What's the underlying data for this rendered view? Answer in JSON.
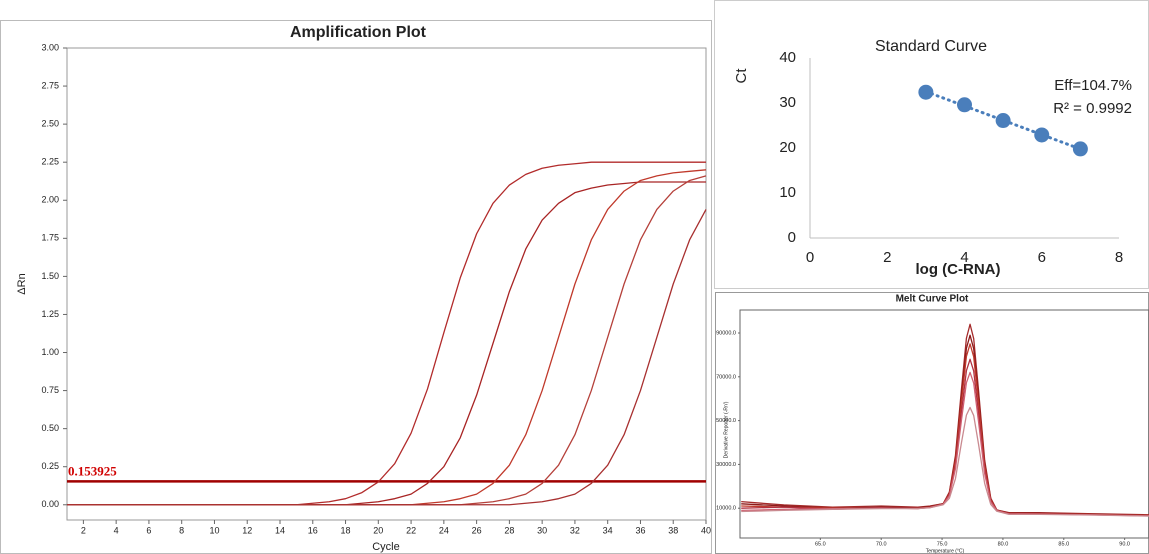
{
  "chart_data": [
    {
      "type": "line",
      "title": "Amplification Plot",
      "x_label": "Cycle",
      "y_label": "ΔRn",
      "x": [
        1,
        2,
        3,
        4,
        5,
        6,
        7,
        8,
        9,
        10,
        11,
        12,
        13,
        14,
        15,
        16,
        17,
        18,
        19,
        20,
        21,
        22,
        23,
        24,
        25,
        26,
        27,
        28,
        29,
        30,
        31,
        32,
        33,
        34,
        35,
        36,
        37,
        38,
        39,
        40
      ],
      "series": [
        {
          "color": "#b22b2b",
          "values": [
            0,
            0,
            0,
            0,
            0,
            0,
            0,
            0,
            0,
            0,
            0,
            0,
            0,
            0,
            0,
            0.01,
            0.02,
            0.04,
            0.08,
            0.15,
            0.27,
            0.47,
            0.76,
            1.13,
            1.49,
            1.78,
            1.98,
            2.1,
            2.17,
            2.21,
            2.23,
            2.24,
            2.25,
            2.25,
            2.25,
            2.25,
            2.25,
            2.25,
            2.25,
            2.25
          ]
        },
        {
          "color": "#a82424",
          "values": [
            0,
            0,
            0,
            0,
            0,
            0,
            0,
            0,
            0,
            0,
            0,
            0,
            0,
            0,
            0,
            0,
            0,
            0,
            0.01,
            0.02,
            0.04,
            0.07,
            0.14,
            0.25,
            0.44,
            0.72,
            1.06,
            1.4,
            1.68,
            1.87,
            1.98,
            2.05,
            2.08,
            2.1,
            2.11,
            2.12,
            2.12,
            2.12,
            2.12,
            2.12
          ]
        },
        {
          "color": "#c0392b",
          "values": [
            0,
            0,
            0,
            0,
            0,
            0,
            0,
            0,
            0,
            0,
            0,
            0,
            0,
            0,
            0,
            0,
            0,
            0,
            0,
            0,
            0,
            0,
            0.01,
            0.02,
            0.04,
            0.07,
            0.14,
            0.26,
            0.46,
            0.75,
            1.1,
            1.45,
            1.74,
            1.94,
            2.06,
            2.13,
            2.16,
            2.18,
            2.19,
            2.2
          ]
        },
        {
          "color": "#b5403a",
          "values": [
            0,
            0,
            0,
            0,
            0,
            0,
            0,
            0,
            0,
            0,
            0,
            0,
            0,
            0,
            0,
            0,
            0,
            0,
            0,
            0,
            0,
            0,
            0,
            0,
            0,
            0.01,
            0.02,
            0.04,
            0.07,
            0.14,
            0.26,
            0.46,
            0.75,
            1.1,
            1.45,
            1.74,
            1.94,
            2.06,
            2.13,
            2.16
          ]
        },
        {
          "color": "#a83030",
          "values": [
            0,
            0,
            0,
            0,
            0,
            0,
            0,
            0,
            0,
            0,
            0,
            0,
            0,
            0,
            0,
            0,
            0,
            0,
            0,
            0,
            0,
            0,
            0,
            0,
            0,
            0,
            0,
            0,
            0.01,
            0.02,
            0.04,
            0.07,
            0.14,
            0.26,
            0.46,
            0.75,
            1.1,
            1.45,
            1.74,
            1.94
          ]
        }
      ],
      "threshold": 0.153925,
      "xlim": [
        1,
        40
      ],
      "xticks": [
        2,
        4,
        6,
        8,
        10,
        12,
        14,
        16,
        18,
        20,
        22,
        24,
        26,
        28,
        30,
        32,
        34,
        36,
        38,
        40
      ],
      "ylim": [
        -0.1,
        3.0
      ],
      "yticks": [
        {
          "value": 0,
          "label": "0.00"
        },
        {
          "value": 0.25,
          "label": "0.25"
        },
        {
          "value": 0.5,
          "label": "0.50"
        },
        {
          "value": 0.75,
          "label": "0.75"
        },
        {
          "value": 1,
          "label": "1.00"
        },
        {
          "value": 1.25,
          "label": "1.25"
        },
        {
          "value": 1.5,
          "label": "1.50"
        },
        {
          "value": 1.75,
          "label": "1.75"
        },
        {
          "value": 2,
          "label": "2.00"
        },
        {
          "value": 2.25,
          "label": "2.25"
        },
        {
          "value": 2.5,
          "label": "2.50"
        },
        {
          "value": 2.75,
          "label": "2.75"
        },
        {
          "value": 3,
          "label": "3.00"
        }
      ]
    },
    {
      "type": "scatter",
      "title": "Standard Curve",
      "x_label": "log (C-RNA)",
      "y_label": "Ct",
      "x": [
        3,
        4,
        5,
        6,
        7
      ],
      "values": [
        32.4,
        29.6,
        26.1,
        22.9,
        19.8
      ],
      "color": "#4a7ebb",
      "trendline": true,
      "annotations": [
        "Eff=104.7%",
        "R² = 0.9992"
      ],
      "xlim": [
        0,
        8
      ],
      "xticks": [
        0,
        2,
        4,
        6,
        8
      ],
      "ylim": [
        0,
        40
      ],
      "yticks": [
        0,
        10,
        20,
        30,
        40
      ]
    },
    {
      "type": "line",
      "title": "Melt Curve Plot",
      "x_label": "Temperature (°C)",
      "y_label": "Derivative Reporter (-Rn')",
      "x": [
        58.5,
        62,
        66,
        70,
        73,
        74,
        75.1,
        75.6,
        76.1,
        76.6,
        77,
        77.3,
        77.6,
        78,
        78.5,
        79,
        79.5,
        80.5,
        83,
        87,
        92
      ],
      "series": [
        {
          "color": "#a52a2a",
          "values": [
            13000,
            11500,
            10500,
            11000,
            10500,
            11000,
            12100,
            17400,
            34100,
            64700,
            87600,
            94000,
            87400,
            63600,
            31900,
            14600,
            9200,
            8000,
            8000,
            7500,
            7000
          ]
        },
        {
          "color": "#8b1a1a",
          "values": [
            12000,
            11000,
            10000,
            10500,
            10200,
            10800,
            12100,
            17000,
            32700,
            61500,
            83000,
            89000,
            82800,
            60400,
            30500,
            14200,
            9100,
            7800,
            7700,
            7300,
            6800
          ]
        },
        {
          "color": "#c0392b",
          "values": [
            11000,
            10500,
            10000,
            10000,
            10000,
            10500,
            12000,
            16700,
            31600,
            58900,
            79300,
            85000,
            79100,
            57800,
            29400,
            13900,
            9000,
            7600,
            7500,
            7200,
            6700
          ]
        },
        {
          "color": "#b03040",
          "values": [
            10000,
            10500,
            9500,
            10200,
            9800,
            10400,
            11900,
            16200,
            29600,
            54300,
            72800,
            78000,
            72600,
            53300,
            27500,
            13400,
            8900,
            7500,
            7400,
            7000,
            6600
          ]
        },
        {
          "color": "#d06070",
          "values": [
            9000,
            9500,
            9800,
            10000,
            9900,
            10300,
            11800,
            15700,
            28000,
            50500,
            67300,
            72000,
            67100,
            49400,
            25800,
            12900,
            8900,
            7400,
            7300,
            7000,
            6500
          ]
        },
        {
          "color": "#c98a90",
          "values": [
            8500,
            9000,
            9500,
            9800,
            9800,
            10200,
            11600,
            14500,
            23500,
            40100,
            52500,
            56000,
            52300,
            39100,
            21300,
            11700,
            8600,
            7200,
            7200,
            6900,
            6400
          ]
        }
      ],
      "xlim": [
        58.4,
        92
      ],
      "xticks": [
        {
          "value": 65,
          "label": "65.0"
        },
        {
          "value": 70,
          "label": "70.0"
        },
        {
          "value": 75,
          "label": "75.0"
        },
        {
          "value": 80,
          "label": "80.0"
        },
        {
          "value": 85,
          "label": "85.0"
        },
        {
          "value": 90,
          "label": "90.0"
        }
      ],
      "ylim": [
        -3600,
        100500
      ],
      "yticks": [
        {
          "value": 10000,
          "label": "10000.0"
        },
        {
          "value": 30000,
          "label": "30000.0"
        },
        {
          "value": 50000,
          "label": "50000.0"
        },
        {
          "value": 70000,
          "label": "70000.0"
        },
        {
          "value": 90000,
          "label": "90000.0"
        }
      ]
    }
  ]
}
